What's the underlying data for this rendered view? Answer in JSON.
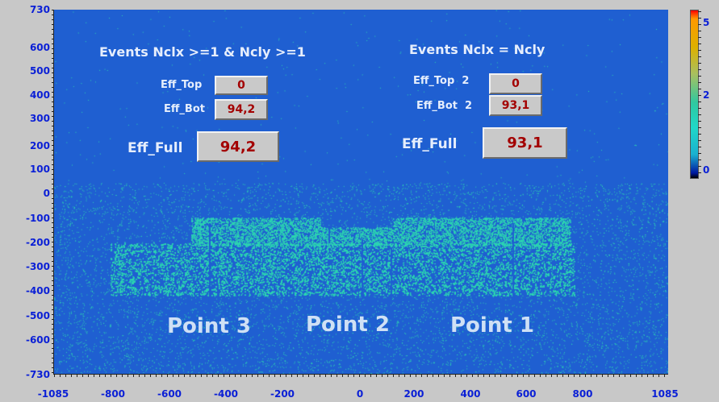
{
  "plot": {
    "y_ticks": [
      "730",
      "600",
      "500",
      "400",
      "300",
      "200",
      "100",
      "0",
      "-100",
      "-200",
      "-300",
      "-400",
      "-500",
      "-600",
      "-730"
    ],
    "x_ticks": [
      "-1085",
      "-800",
      "-600",
      "-400",
      "-200",
      "0",
      "200",
      "400",
      "600",
      "800",
      "1085"
    ],
    "xlim": [
      -1085,
      1085
    ],
    "ylim": [
      -730,
      730
    ],
    "colors": {
      "background": "#1f5fd1",
      "hits": "#2fd6b0"
    }
  },
  "colorbar": {
    "labels": [
      "5",
      "2",
      "0"
    ]
  },
  "left_group": {
    "title": "Events Nclx >=1 & Ncly >=1",
    "eff_top_label": "Eff_Top",
    "eff_top_value": "0",
    "eff_bot_label": "Eff_Bot",
    "eff_bot_value": "94,2",
    "eff_full_label": "Eff_Full",
    "eff_full_value": "94,2"
  },
  "right_group": {
    "title": "Events Nclx = Ncly",
    "eff_top_label": "Eff_Top  2",
    "eff_top_value": "0",
    "eff_bot_label": "Eff_Bot  2",
    "eff_bot_value": "93,1",
    "eff_full_label": "Eff_Full",
    "eff_full_value": "93,1"
  },
  "points": {
    "point3": "Point 3",
    "point2": "Point 2",
    "point1": "Point 1"
  }
}
